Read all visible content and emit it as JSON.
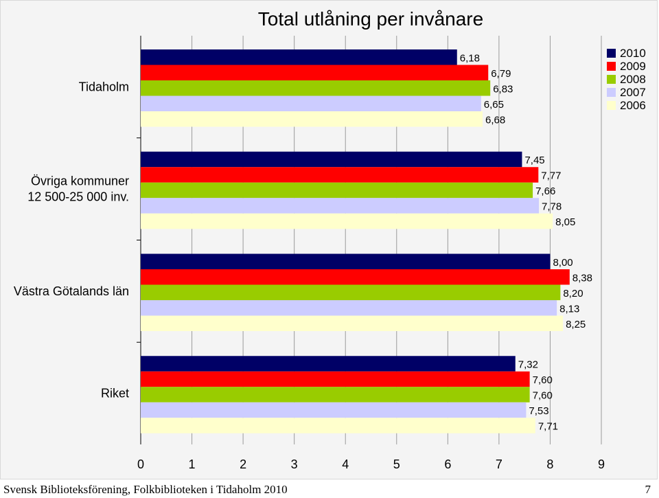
{
  "chart_data": {
    "type": "bar",
    "orientation": "horizontal",
    "title": "Total utlåning per invånare",
    "categories": [
      "Tidaholm",
      "Övriga kommuner\n12 500-25 000 inv.",
      "Västra Götalands län",
      "Riket"
    ],
    "series": [
      {
        "name": "2010",
        "color": "#000066",
        "values": [
          6.18,
          7.45,
          8.0,
          7.32
        ],
        "labels": [
          "6,18",
          "7,45",
          "8,00",
          "7,32"
        ]
      },
      {
        "name": "2009",
        "color": "#ff0000",
        "values": [
          6.79,
          7.77,
          8.38,
          7.6
        ],
        "labels": [
          "6,79",
          "7,77",
          "8,38",
          "7,60"
        ]
      },
      {
        "name": "2008",
        "color": "#99cc00",
        "values": [
          6.83,
          7.66,
          8.2,
          7.6
        ],
        "labels": [
          "6,83",
          "7,66",
          "8,20",
          "7,60"
        ]
      },
      {
        "name": "2007",
        "color": "#ccccff",
        "values": [
          6.65,
          7.78,
          8.13,
          7.53
        ],
        "labels": [
          "6,65",
          "7,78",
          "8,13",
          "7,53"
        ]
      },
      {
        "name": "2006",
        "color": "#ffffcc",
        "values": [
          6.68,
          8.05,
          8.25,
          7.71
        ],
        "labels": [
          "6,68",
          "8,05",
          "8,25",
          "7,71"
        ]
      }
    ],
    "xlim": [
      0,
      9
    ],
    "xticks": [
      "0",
      "1",
      "2",
      "3",
      "4",
      "5",
      "6",
      "7",
      "8",
      "9"
    ],
    "xlabel": "",
    "ylabel": "",
    "grid": "vertical",
    "legend": "top-right"
  },
  "footer": {
    "text": "Svensk Biblioteksförening, Folkbiblioteken i Tidaholm 2010",
    "page": "7"
  }
}
